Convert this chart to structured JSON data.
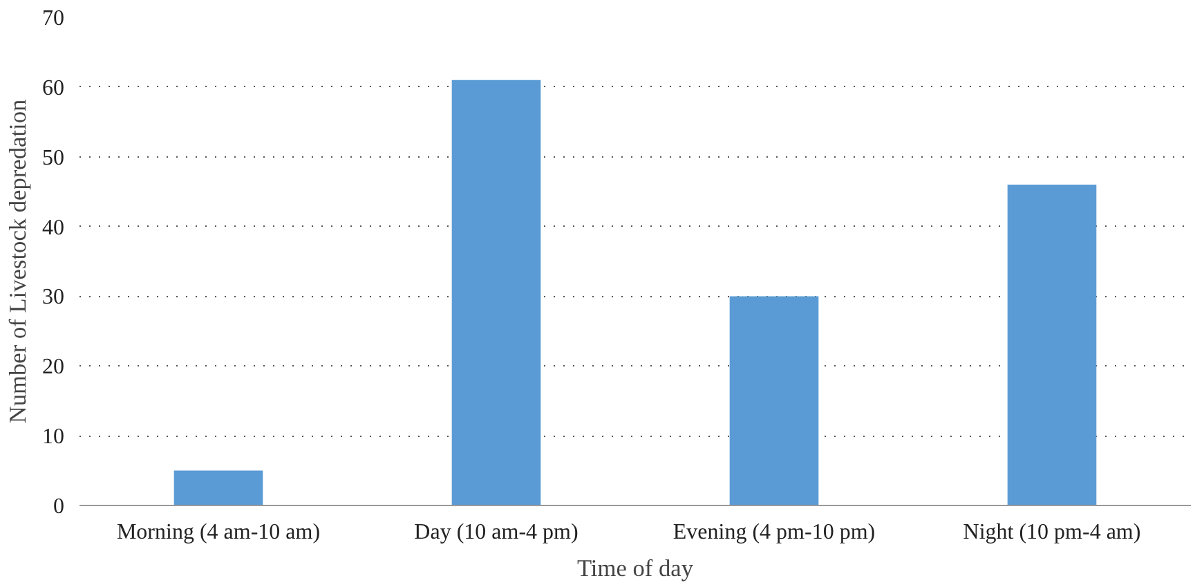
{
  "chart_data": {
    "type": "bar",
    "xlabel": "Time of day",
    "ylabel": "Number of Livestock depredation",
    "categories": [
      "Morning (4 am-10 am)",
      "Day (10 am-4 pm)",
      "Evening (4 pm-10 pm)",
      "Night (10 pm-4 am)"
    ],
    "values": [
      5,
      61,
      30,
      46
    ],
    "color": "#5b9bd5",
    "ylim": [
      0,
      70
    ],
    "yticks": [
      0,
      10,
      20,
      30,
      40,
      50,
      60,
      70
    ],
    "grid": "y"
  }
}
